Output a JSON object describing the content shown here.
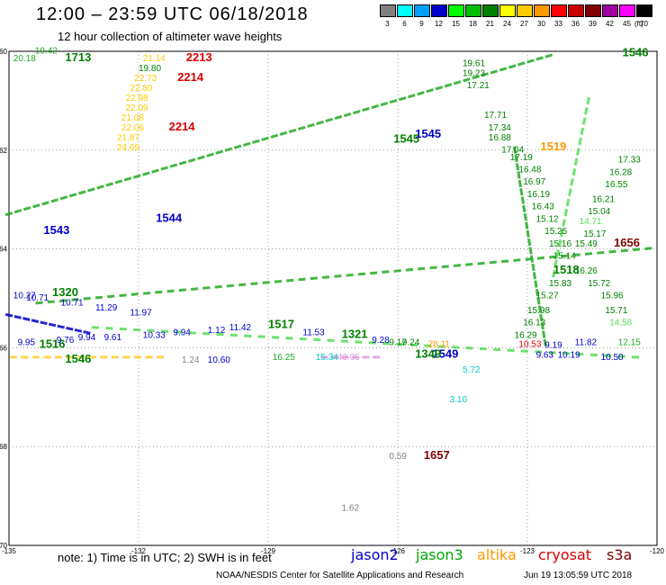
{
  "header": {
    "title": "12:00 – 23:59 UTC 06/18/2018",
    "subtitle": "12 hour collection of altimeter wave heights"
  },
  "color_scale": {
    "unit": "(ft)",
    "bins": [
      {
        "label": "3",
        "color": "#808080"
      },
      {
        "label": "6",
        "color": "#00ffff"
      },
      {
        "label": "9",
        "color": "#00a0ff"
      },
      {
        "label": "12",
        "color": "#0000cc"
      },
      {
        "label": "15",
        "color": "#00ff00"
      },
      {
        "label": "18",
        "color": "#00c000"
      },
      {
        "label": "21",
        "color": "#008000"
      },
      {
        "label": "24",
        "color": "#ffff00"
      },
      {
        "label": "27",
        "color": "#ffcc00"
      },
      {
        "label": "30",
        "color": "#ff9900"
      },
      {
        "label": "33",
        "color": "#ff0000"
      },
      {
        "label": "36",
        "color": "#cc0000"
      },
      {
        "label": "39",
        "color": "#800000"
      },
      {
        "label": "42",
        "color": "#a000a0"
      },
      {
        "label": "45",
        "color": "#ff00ff"
      },
      {
        "label": "70",
        "color": "#000000"
      }
    ]
  },
  "map": {
    "lat_labels": [
      "60",
      "62",
      "64",
      "66",
      "68",
      "70"
    ],
    "lon_labels": [
      "-135",
      "-132",
      "-129",
      "-126",
      "-123",
      "-120"
    ],
    "lon_values": [
      -135,
      -132,
      -129,
      -126,
      -123,
      -120
    ],
    "lat_values": [
      60,
      62,
      64,
      66,
      68,
      70
    ]
  },
  "tracks": [
    {
      "satellite": "jason3",
      "color": "#22aa22",
      "from": [
        -135.0,
        63.3
      ],
      "to": [
        -122.5,
        60.1
      ],
      "count": 60
    },
    {
      "satellite": "jason3",
      "color": "#22aa22",
      "from": [
        -134.3,
        65.1
      ],
      "to": [
        -120.2,
        64.0
      ],
      "count": 52
    },
    {
      "satellite": "jason2",
      "color": "#0000cc",
      "from": [
        -135.0,
        65.35
      ],
      "to": [
        -133.2,
        65.7
      ],
      "count": 10
    },
    {
      "satellite": "jason3",
      "color": "#55dd55",
      "from": [
        -133.0,
        65.6
      ],
      "to": [
        -120.5,
        66.2
      ],
      "count": 40
    },
    {
      "satellite": "altika",
      "color": "#ffcc33",
      "from": [
        -134.9,
        66.2
      ],
      "to": [
        -131.5,
        66.2
      ],
      "count": 14
    },
    {
      "satellite": "s3a",
      "color": "#dd99dd",
      "from": [
        -127.7,
        66.2
      ],
      "to": [
        -126.5,
        66.2
      ],
      "count": 6
    },
    {
      "satellite": "jason3",
      "color": "#22aa22",
      "from": [
        -123.3,
        62.0
      ],
      "to": [
        -122.6,
        65.9
      ],
      "count": 24
    },
    {
      "satellite": "jason3",
      "color": "#55dd55",
      "from": [
        -121.6,
        61.0
      ],
      "to": [
        -122.4,
        64.5
      ],
      "count": 18
    }
  ],
  "labels": [
    {
      "text": "20.18",
      "lon": -134.9,
      "lat": 60.2,
      "color": "#22aa22",
      "size": 10
    },
    {
      "text": "19.42",
      "lon": -134.4,
      "lat": 60.05,
      "color": "#22aa22",
      "size": 10
    },
    {
      "text": "1713",
      "lon": -133.7,
      "lat": 60.2,
      "color": "#008000",
      "size": 13,
      "bold": true
    },
    {
      "text": "21.14",
      "lon": -131.9,
      "lat": 60.2,
      "color": "#ffcc00",
      "size": 10
    },
    {
      "text": "2213",
      "lon": -130.9,
      "lat": 60.2,
      "color": "#dd0000",
      "size": 13,
      "bold": true
    },
    {
      "text": "19.80",
      "lon": -132.0,
      "lat": 60.4,
      "color": "#008000",
      "size": 10
    },
    {
      "text": "22.73",
      "lon": -132.1,
      "lat": 60.6,
      "color": "#ffcc00",
      "size": 10
    },
    {
      "text": "2214",
      "lon": -131.1,
      "lat": 60.6,
      "color": "#dd0000",
      "size": 13,
      "bold": true
    },
    {
      "text": "22.80",
      "lon": -132.2,
      "lat": 60.8,
      "color": "#ffcc00",
      "size": 10
    },
    {
      "text": "22.98",
      "lon": -132.3,
      "lat": 61.0,
      "color": "#ffcc00",
      "size": 10
    },
    {
      "text": "22.09",
      "lon": -132.3,
      "lat": 61.2,
      "color": "#ffcc00",
      "size": 10
    },
    {
      "text": "21.08",
      "lon": -132.4,
      "lat": 61.4,
      "color": "#ffcc00",
      "size": 10
    },
    {
      "text": "22.06",
      "lon": -132.4,
      "lat": 61.6,
      "color": "#ffcc00",
      "size": 10
    },
    {
      "text": "2214",
      "lon": -131.3,
      "lat": 61.6,
      "color": "#dd0000",
      "size": 13,
      "bold": true
    },
    {
      "text": "21.87",
      "lon": -132.5,
      "lat": 61.8,
      "color": "#ffcc00",
      "size": 10
    },
    {
      "text": "24.69",
      "lon": -132.5,
      "lat": 62.0,
      "color": "#ffcc00",
      "size": 10
    },
    {
      "text": "1545",
      "lon": -125.6,
      "lat": 61.75,
      "color": "#0000cc",
      "size": 13,
      "bold": true
    },
    {
      "text": "1545",
      "lon": -126.1,
      "lat": 61.85,
      "color": "#008000",
      "size": 13,
      "bold": true
    },
    {
      "text": "19.61",
      "lon": -124.5,
      "lat": 60.3,
      "color": "#008000",
      "size": 10
    },
    {
      "text": "19.23",
      "lon": -124.5,
      "lat": 60.5,
      "color": "#008000",
      "size": 10
    },
    {
      "text": "17.21",
      "lon": -124.4,
      "lat": 60.75,
      "color": "#008000",
      "size": 10
    },
    {
      "text": "17.71",
      "lon": -124.0,
      "lat": 61.35,
      "color": "#008000",
      "size": 10
    },
    {
      "text": "17.34",
      "lon": -123.9,
      "lat": 61.6,
      "color": "#008000",
      "size": 10
    },
    {
      "text": "16.88",
      "lon": -123.9,
      "lat": 61.8,
      "color": "#008000",
      "size": 10
    },
    {
      "text": "17.04",
      "lon": -123.6,
      "lat": 62.05,
      "color": "#008000",
      "size": 10
    },
    {
      "text": "1519",
      "lon": -122.7,
      "lat": 62.0,
      "color": "#ff9900",
      "size": 13,
      "bold": true
    },
    {
      "text": "17.19",
      "lon": -123.4,
      "lat": 62.2,
      "color": "#008000",
      "size": 10
    },
    {
      "text": "16.48",
      "lon": -123.2,
      "lat": 62.45,
      "color": "#008000",
      "size": 10
    },
    {
      "text": "16.97",
      "lon": -123.1,
      "lat": 62.7,
      "color": "#008000",
      "size": 10
    },
    {
      "text": "16.19",
      "lon": -123.0,
      "lat": 62.95,
      "color": "#008000",
      "size": 10
    },
    {
      "text": "16.43",
      "lon": -122.9,
      "lat": 63.2,
      "color": "#008000",
      "size": 10
    },
    {
      "text": "15.12",
      "lon": -122.8,
      "lat": 63.45,
      "color": "#008000",
      "size": 10
    },
    {
      "text": "15.25",
      "lon": -122.6,
      "lat": 63.7,
      "color": "#008000",
      "size": 10
    },
    {
      "text": "15.16",
      "lon": -122.5,
      "lat": 63.95,
      "color": "#008000",
      "size": 10
    },
    {
      "text": "15.14",
      "lon": -122.4,
      "lat": 64.2,
      "color": "#008000",
      "size": 10
    },
    {
      "text": "15.49",
      "lon": -121.9,
      "lat": 63.95,
      "color": "#008000",
      "size": 10
    },
    {
      "text": "1656",
      "lon": -121.0,
      "lat": 63.95,
      "color": "#800000",
      "size": 13,
      "bold": true
    },
    {
      "text": "1546",
      "lon": -120.8,
      "lat": 60.1,
      "color": "#008000",
      "size": 13,
      "bold": true
    },
    {
      "text": "15.17",
      "lon": -121.7,
      "lat": 63.75,
      "color": "#008000",
      "size": 10
    },
    {
      "text": "15.04",
      "lon": -121.6,
      "lat": 63.3,
      "color": "#008000",
      "size": 10
    },
    {
      "text": "16.21",
      "lon": -121.5,
      "lat": 63.05,
      "color": "#008000",
      "size": 10
    },
    {
      "text": "16.55",
      "lon": -121.2,
      "lat": 62.75,
      "color": "#008000",
      "size": 10
    },
    {
      "text": "16.28",
      "lon": -121.1,
      "lat": 62.5,
      "color": "#008000",
      "size": 10
    },
    {
      "text": "17.33",
      "lon": -120.9,
      "lat": 62.25,
      "color": "#008000",
      "size": 10
    },
    {
      "text": "14.71",
      "lon": -121.8,
      "lat": 63.5,
      "color": "#55dd55",
      "size": 10
    },
    {
      "text": "16.26",
      "lon": -121.9,
      "lat": 64.5,
      "color": "#008000",
      "size": 10
    },
    {
      "text": "15.72",
      "lon": -121.6,
      "lat": 64.75,
      "color": "#008000",
      "size": 10
    },
    {
      "text": "15.96",
      "lon": -121.3,
      "lat": 65.0,
      "color": "#008000",
      "size": 10
    },
    {
      "text": "15.71",
      "lon": -121.2,
      "lat": 65.3,
      "color": "#008000",
      "size": 10
    },
    {
      "text": "14.58",
      "lon": -121.1,
      "lat": 65.55,
      "color": "#55dd55",
      "size": 10
    },
    {
      "text": "15.83",
      "lon": -122.5,
      "lat": 64.75,
      "color": "#008000",
      "size": 10
    },
    {
      "text": "15.27",
      "lon": -122.8,
      "lat": 65.0,
      "color": "#008000",
      "size": 10
    },
    {
      "text": "15.98",
      "lon": -123.0,
      "lat": 65.3,
      "color": "#008000",
      "size": 10
    },
    {
      "text": "16.13",
      "lon": -123.1,
      "lat": 65.55,
      "color": "#008000",
      "size": 10
    },
    {
      "text": "16.29",
      "lon": -123.3,
      "lat": 65.8,
      "color": "#008000",
      "size": 10
    },
    {
      "text": "1518",
      "lon": -122.4,
      "lat": 64.5,
      "color": "#008000",
      "size": 13,
      "bold": true
    },
    {
      "text": "1320",
      "lon": -134.0,
      "lat": 64.95,
      "color": "#008000",
      "size": 13,
      "bold": true
    },
    {
      "text": "10.27",
      "lon": -134.9,
      "lat": 65.0,
      "color": "#0000cc",
      "size": 10
    },
    {
      "text": "10.71",
      "lon": -134.6,
      "lat": 65.05,
      "color": "#0000cc",
      "size": 10
    },
    {
      "text": "10.71",
      "lon": -133.8,
      "lat": 65.15,
      "color": "#0000cc",
      "size": 10
    },
    {
      "text": "11.29",
      "lon": -133.0,
      "lat": 65.25,
      "color": "#0000cc",
      "size": 10
    },
    {
      "text": "11.97",
      "lon": -132.2,
      "lat": 65.35,
      "color": "#0000cc",
      "size": 10
    },
    {
      "text": "10.33",
      "lon": -131.9,
      "lat": 65.8,
      "color": "#0000cc",
      "size": 10
    },
    {
      "text": "9.94",
      "lon": -131.2,
      "lat": 65.75,
      "color": "#0000cc",
      "size": 10
    },
    {
      "text": "1.12",
      "lon": -130.4,
      "lat": 65.7,
      "color": "#0000cc",
      "size": 10
    },
    {
      "text": "11.42",
      "lon": -129.9,
      "lat": 65.65,
      "color": "#0000cc",
      "size": 10
    },
    {
      "text": "1517",
      "lon": -129.0,
      "lat": 65.6,
      "color": "#008000",
      "size": 13,
      "bold": true
    },
    {
      "text": "11.53",
      "lon": -128.2,
      "lat": 65.75,
      "color": "#0000cc",
      "size": 10
    },
    {
      "text": "1321",
      "lon": -127.3,
      "lat": 65.8,
      "color": "#008000",
      "size": 13,
      "bold": true
    },
    {
      "text": "9.28",
      "lon": -126.6,
      "lat": 65.9,
      "color": "#0000cc",
      "size": 10
    },
    {
      "text": "9.17",
      "lon": -126.2,
      "lat": 65.95,
      "color": "#008000",
      "size": 10
    },
    {
      "text": "9.24",
      "lon": -125.9,
      "lat": 65.95,
      "color": "#008000",
      "size": 10
    },
    {
      "text": "1549",
      "lon": -125.2,
      "lat": 66.2,
      "color": "#0000cc",
      "size": 13,
      "bold": true
    },
    {
      "text": "1349",
      "lon": -125.6,
      "lat": 66.2,
      "color": "#008000",
      "size": 13,
      "bold": true
    },
    {
      "text": "28.11",
      "lon": -125.3,
      "lat": 65.98,
      "color": "#ff9900",
      "size": 10
    },
    {
      "text": "9.95",
      "lon": -134.8,
      "lat": 65.95,
      "color": "#0000cc",
      "size": 10
    },
    {
      "text": "1516",
      "lon": -134.3,
      "lat": 66.0,
      "color": "#008000",
      "size": 13,
      "bold": true
    },
    {
      "text": "9.76",
      "lon": -133.9,
      "lat": 65.9,
      "color": "#0000cc",
      "size": 10
    },
    {
      "text": "9.94",
      "lon": -133.4,
      "lat": 65.85,
      "color": "#0000cc",
      "size": 10
    },
    {
      "text": "9.61",
      "lon": -132.8,
      "lat": 65.85,
      "color": "#0000cc",
      "size": 10
    },
    {
      "text": "1546",
      "lon": -133.7,
      "lat": 66.3,
      "color": "#008000",
      "size": 13,
      "bold": true
    },
    {
      "text": "1.24",
      "lon": -131.0,
      "lat": 66.3,
      "color": "#808080",
      "size": 10
    },
    {
      "text": "10.60",
      "lon": -130.4,
      "lat": 66.3,
      "color": "#0000cc",
      "size": 10
    },
    {
      "text": "16.25",
      "lon": -128.9,
      "lat": 66.25,
      "color": "#22aa22",
      "size": 10
    },
    {
      "text": "15.34",
      "lon": -127.9,
      "lat": 66.25,
      "color": "#00cccc",
      "size": 10
    },
    {
      "text": "43.05",
      "lon": -127.4,
      "lat": 66.25,
      "color": "#dd99dd",
      "size": 10
    },
    {
      "text": "5.72",
      "lon": -124.5,
      "lat": 66.5,
      "color": "#00cccc",
      "size": 10
    },
    {
      "text": "3.10",
      "lon": -124.8,
      "lat": 67.1,
      "color": "#00cccc",
      "size": 10
    },
    {
      "text": "9.63",
      "lon": -122.8,
      "lat": 66.2,
      "color": "#0000cc",
      "size": 10
    },
    {
      "text": "10.19",
      "lon": -122.3,
      "lat": 66.2,
      "color": "#0000cc",
      "size": 10
    },
    {
      "text": "9.19",
      "lon": -122.6,
      "lat": 66.0,
      "color": "#0000cc",
      "size": 10
    },
    {
      "text": "11.82",
      "lon": -121.9,
      "lat": 65.95,
      "color": "#0000cc",
      "size": 10
    },
    {
      "text": "10.50",
      "lon": -121.3,
      "lat": 66.25,
      "color": "#0000cc",
      "size": 10
    },
    {
      "text": "12.15",
      "lon": -120.9,
      "lat": 65.95,
      "color": "#22aa22",
      "size": 10
    },
    {
      "text": "10.53",
      "lon": -123.2,
      "lat": 65.98,
      "color": "#dd0000",
      "size": 10
    },
    {
      "text": "0.59",
      "lon": -126.2,
      "lat": 68.25,
      "color": "#808080",
      "size": 10
    },
    {
      "text": "1657",
      "lon": -125.4,
      "lat": 68.25,
      "color": "#800000",
      "size": 13,
      "bold": true
    },
    {
      "text": "1.62",
      "lon": -127.3,
      "lat": 69.3,
      "color": "#808080",
      "size": 10
    },
    {
      "text": "1543",
      "lon": -134.2,
      "lat": 63.7,
      "color": "#0000cc",
      "size": 13,
      "bold": true
    },
    {
      "text": "1544",
      "lon": -131.6,
      "lat": 63.45,
      "color": "#0000cc",
      "size": 13,
      "bold": true
    }
  ],
  "footer": {
    "note": "note:  1) Time is in UTC;  2) SWH is in feet",
    "satellites": [
      {
        "name": "jason2",
        "color": "#0000cc"
      },
      {
        "name": "jason3",
        "color": "#00aa00"
      },
      {
        "name": "altika",
        "color": "#ff9900"
      },
      {
        "name": "cryosat",
        "color": "#dd0000"
      },
      {
        "name": "s3a",
        "color": "#800000"
      }
    ],
    "credit": "NOAA/NESDIS Center for Satellite Applications and Research",
    "timestamp": "Jun 19 13:05:59 UTC 2018"
  }
}
